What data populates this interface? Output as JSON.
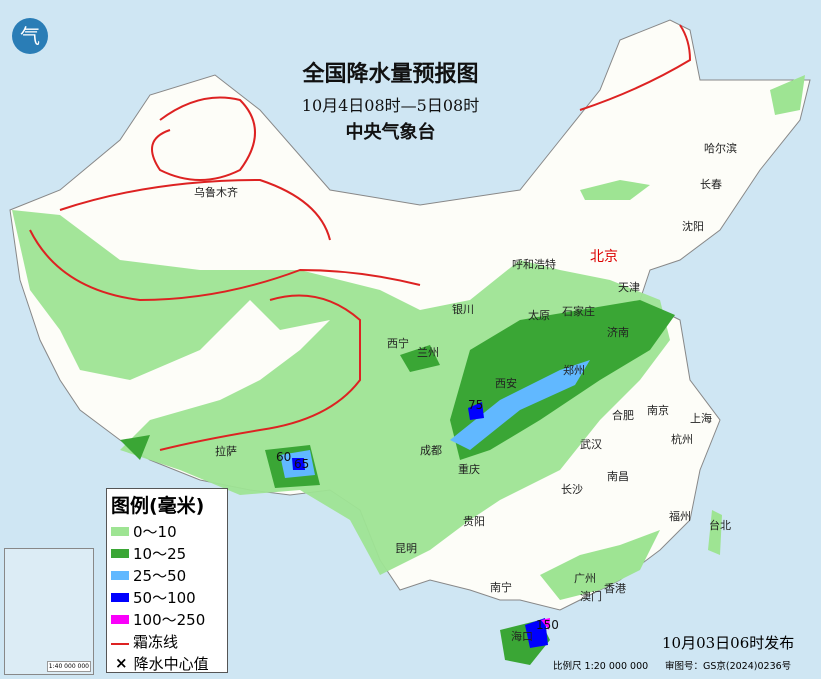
{
  "title": "全国降水量预报图",
  "period": "10月4日08时—5日08时",
  "issuer": "中央气象台",
  "issued": "10月03日06时发布",
  "scale": "比例尺 1:20 000 000",
  "review_no": "审图号：GS京(2024)0236号",
  "logo_text": "气",
  "legend": {
    "title": "图例(毫米)",
    "items": [
      {
        "label": "0～10",
        "color": "#9ee493"
      },
      {
        "label": "10～25",
        "color": "#3aa635"
      },
      {
        "label": "25～50",
        "color": "#61b8ff"
      },
      {
        "label": "50～100",
        "color": "#0000fe"
      },
      {
        "label": "100～250",
        "color": "#fa00fa"
      }
    ],
    "frost_line": "霜冻线",
    "center_value": "降水中心值"
  },
  "inset": {
    "scale": "1:40 000 000"
  },
  "cities": [
    "乌鲁木齐",
    "哈尔滨",
    "长春",
    "沈阳",
    "北京",
    "天津",
    "呼和浩特",
    "石家庄",
    "太原",
    "银川",
    "济南",
    "西宁",
    "兰州",
    "郑州",
    "西安",
    "合肥",
    "南京",
    "上海",
    "杭州",
    "武汉",
    "成都",
    "重庆",
    "拉萨",
    "南昌",
    "长沙",
    "福州",
    "台北",
    "贵阳",
    "昆明",
    "南宁",
    "广州",
    "香港",
    "澳门",
    "海口"
  ],
  "center_values": [
    "75",
    "60",
    "65",
    "150"
  ]
}
